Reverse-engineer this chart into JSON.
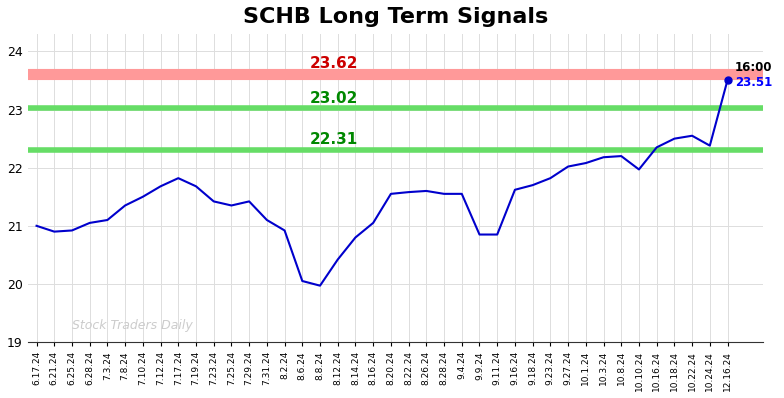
{
  "title": "SCHB Long Term Signals",
  "title_fontsize": 16,
  "title_fontweight": "bold",
  "background_color": "#ffffff",
  "line_color": "#0000cc",
  "line_width": 1.5,
  "ylim": [
    19,
    24.3
  ],
  "yticks": [
    19,
    20,
    21,
    22,
    23,
    24
  ],
  "hline_red": 23.62,
  "hline_green1": 23.02,
  "hline_green2": 22.31,
  "hline_red_color": "#ff9999",
  "hline_green_color": "#66dd66",
  "label_red": "23.62",
  "label_green1": "23.02",
  "label_green2": "22.31",
  "label_red_color": "#cc0000",
  "label_green_color": "#008800",
  "watermark": "Stock Traders Daily",
  "watermark_color": "#cccccc",
  "end_label_time": "16:00",
  "end_label_price": "23.51",
  "end_label_price_color": "#0000ff",
  "end_label_time_color": "#000000",
  "dot_color": "#0000cc",
  "x_labels": [
    "6.17.24",
    "6.21.24",
    "6.25.24",
    "6.28.24",
    "7.3.24",
    "7.8.24",
    "7.10.24",
    "7.12.24",
    "7.17.24",
    "7.19.24",
    "7.23.24",
    "7.25.24",
    "7.29.24",
    "7.31.24",
    "8.2.24",
    "8.6.24",
    "8.8.24",
    "8.12.24",
    "8.14.24",
    "8.16.24",
    "8.20.24",
    "8.22.24",
    "8.26.24",
    "8.28.24",
    "9.4.24",
    "9.9.24",
    "9.11.24",
    "9.16.24",
    "9.18.24",
    "9.23.24",
    "9.27.24",
    "10.1.24",
    "10.3.24",
    "10.8.24",
    "10.10.24",
    "10.16.24",
    "10.18.24",
    "10.22.24",
    "10.24.24",
    "12.16.24"
  ],
  "prices": [
    21.0,
    20.9,
    20.92,
    21.05,
    21.1,
    21.35,
    21.5,
    21.68,
    21.82,
    21.68,
    21.42,
    21.35,
    21.42,
    21.1,
    20.92,
    20.05,
    19.97,
    20.42,
    20.8,
    21.05,
    21.55,
    21.58,
    21.6,
    21.55,
    21.55,
    20.85,
    20.85,
    21.62,
    21.7,
    21.82,
    22.02,
    22.08,
    22.18,
    22.2,
    21.97,
    22.35,
    22.5,
    22.55,
    22.38,
    23.51
  ]
}
